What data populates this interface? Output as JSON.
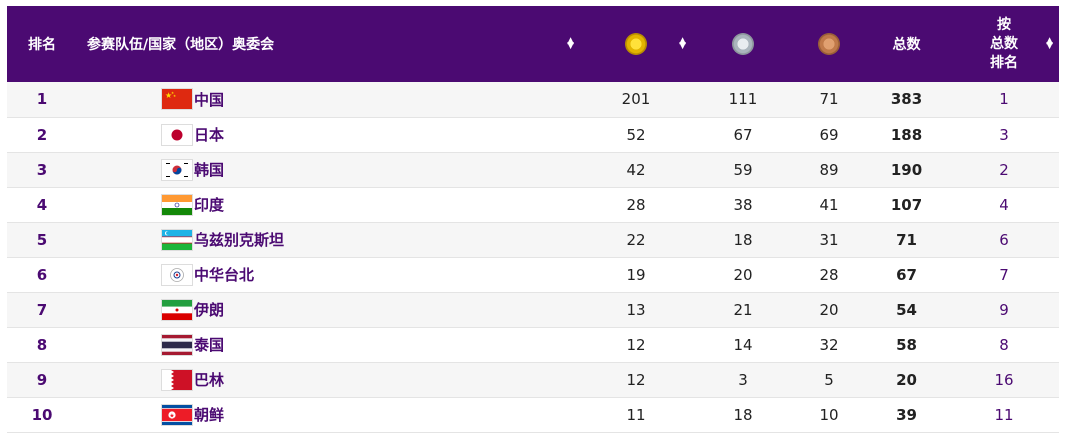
{
  "header": {
    "rank": "排名",
    "team": "参赛队伍/国家（地区）奥委会",
    "total": "总数",
    "total_rank_lines": [
      "按",
      "总数",
      "排名"
    ],
    "sort_icon": "sort-icon"
  },
  "rows": [
    {
      "rank": "1",
      "name": "中国",
      "flag": "china-flag-icon",
      "gold": "201",
      "silver": "111",
      "bronze": "71",
      "total": "383",
      "total_rank": "1"
    },
    {
      "rank": "2",
      "name": "日本",
      "flag": "japan-flag-icon",
      "gold": "52",
      "silver": "67",
      "bronze": "69",
      "total": "188",
      "total_rank": "3"
    },
    {
      "rank": "3",
      "name": "韩国",
      "flag": "korea-flag-icon",
      "gold": "42",
      "silver": "59",
      "bronze": "89",
      "total": "190",
      "total_rank": "2"
    },
    {
      "rank": "4",
      "name": "印度",
      "flag": "india-flag-icon",
      "gold": "28",
      "silver": "38",
      "bronze": "41",
      "total": "107",
      "total_rank": "4"
    },
    {
      "rank": "5",
      "name": "乌兹别克斯坦",
      "flag": "uzbekistan-flag-icon",
      "gold": "22",
      "silver": "18",
      "bronze": "31",
      "total": "71",
      "total_rank": "6"
    },
    {
      "rank": "6",
      "name": "中华台北",
      "flag": "chinese-taipei-flag-icon",
      "gold": "19",
      "silver": "20",
      "bronze": "28",
      "total": "67",
      "total_rank": "7"
    },
    {
      "rank": "7",
      "name": "伊朗",
      "flag": "iran-flag-icon",
      "gold": "13",
      "silver": "21",
      "bronze": "20",
      "total": "54",
      "total_rank": "9"
    },
    {
      "rank": "8",
      "name": "泰国",
      "flag": "thailand-flag-icon",
      "gold": "12",
      "silver": "14",
      "bronze": "32",
      "total": "58",
      "total_rank": "8"
    },
    {
      "rank": "9",
      "name": "巴林",
      "flag": "bahrain-flag-icon",
      "gold": "12",
      "silver": "3",
      "bronze": "5",
      "total": "20",
      "total_rank": "16"
    },
    {
      "rank": "10",
      "name": "朝鲜",
      "flag": "north-korea-flag-icon",
      "gold": "11",
      "silver": "18",
      "bronze": "10",
      "total": "39",
      "total_rank": "11"
    }
  ],
  "colors": {
    "header_bg": "#4b0a72",
    "accent": "#4b0a72",
    "gold": "#e2b400",
    "silver": "#aab5bd",
    "bronze": "#c07a4a"
  }
}
